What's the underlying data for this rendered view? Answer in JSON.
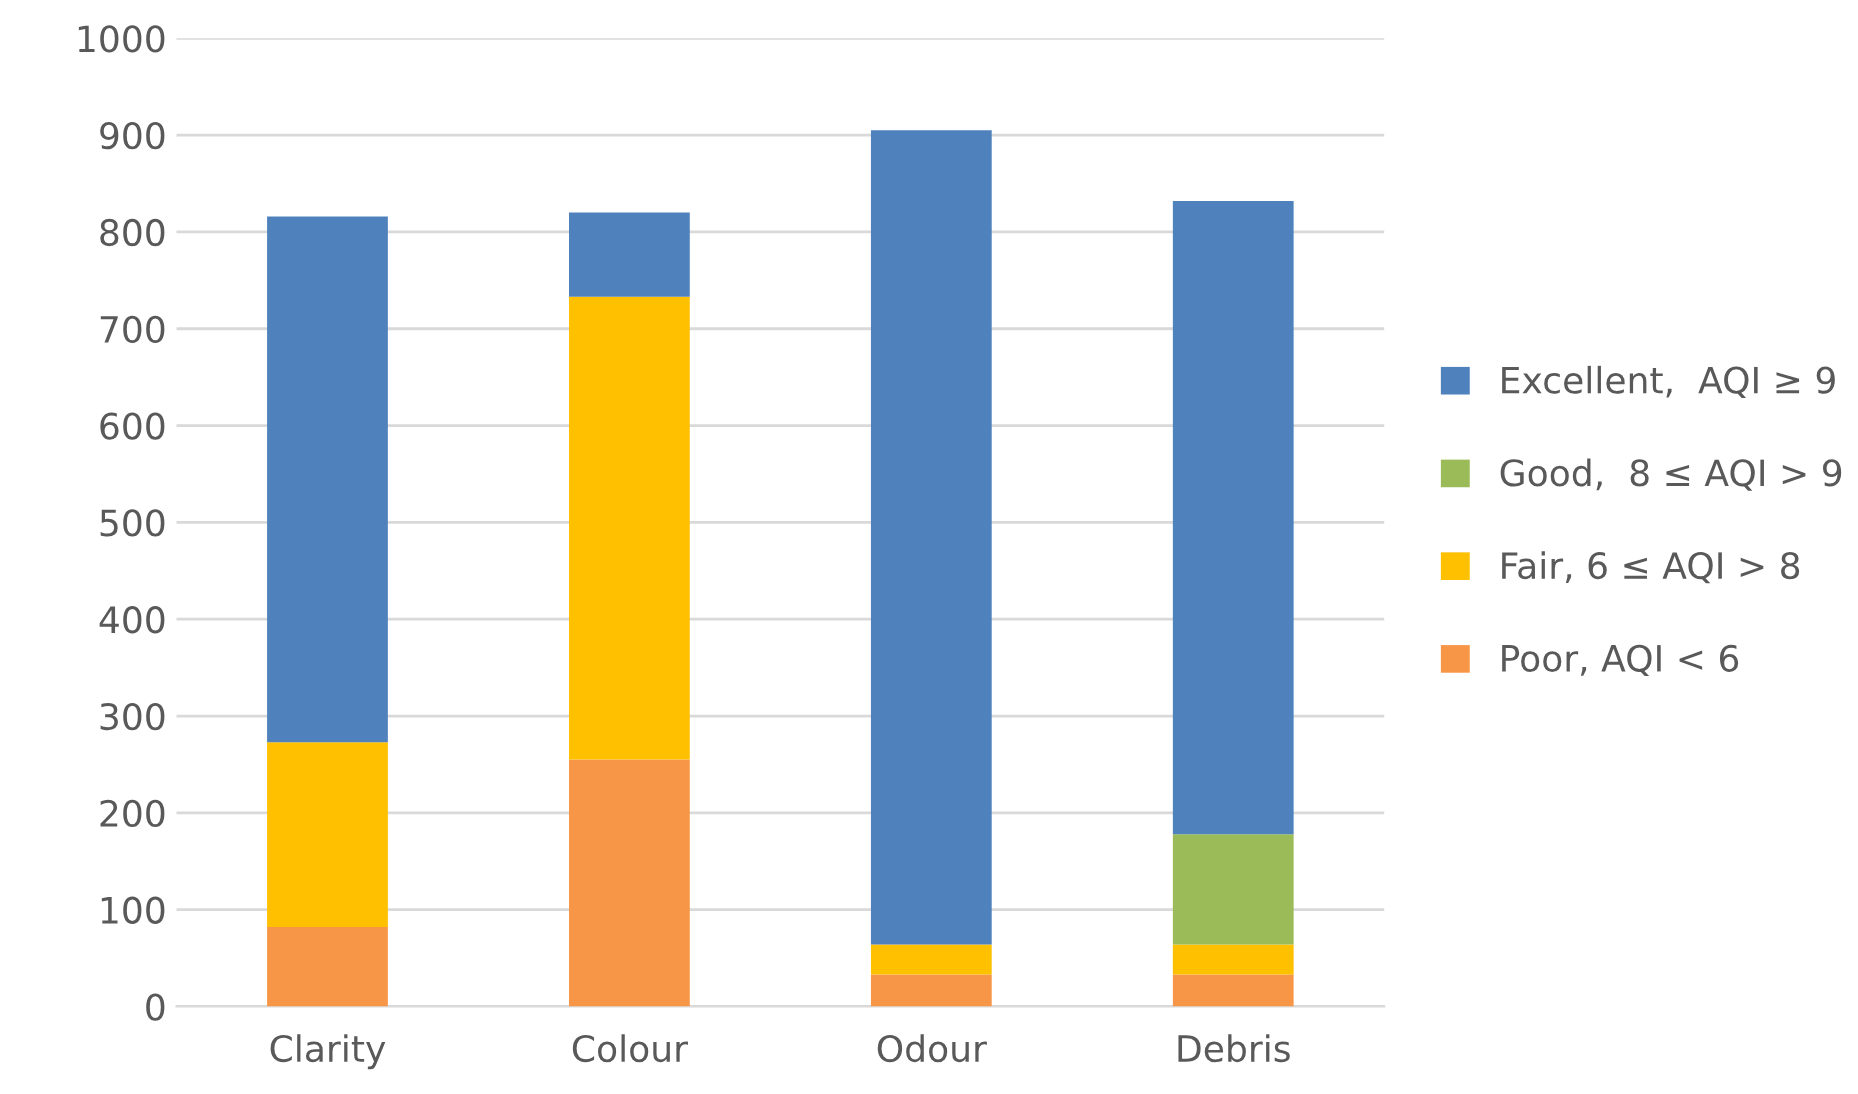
{
  "chart_data": {
    "type": "bar",
    "stacked": true,
    "categories": [
      "Clarity",
      "Colour",
      "Odour",
      "Debris"
    ],
    "series": [
      {
        "name": "Poor, AQI < 6",
        "color": "#f79646",
        "values": [
          82,
          255,
          33,
          33
        ]
      },
      {
        "name": "Fair, 6 ≤ AQI > 8",
        "color": "#ffc000",
        "values": [
          191,
          478,
          31,
          31
        ]
      },
      {
        "name": "Good,  8 ≤ AQI > 9",
        "color": "#9bbb59",
        "values": [
          0,
          0,
          0,
          114
        ]
      },
      {
        "name": "Excellent,  AQI ≥ 9",
        "color": "#4f81bd",
        "values": [
          543,
          87,
          841,
          654
        ]
      }
    ],
    "ylim": [
      0,
      1000
    ],
    "yticks": [
      0,
      100,
      200,
      300,
      400,
      500,
      600,
      700,
      800,
      900,
      1000
    ],
    "grid": "y",
    "legend": "right"
  }
}
